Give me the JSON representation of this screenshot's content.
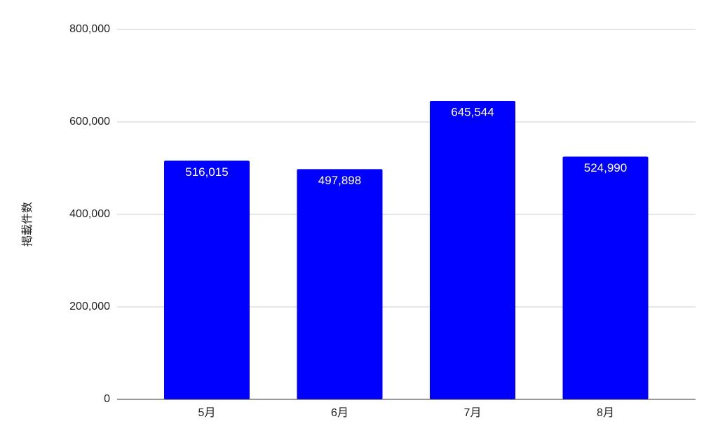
{
  "chart_data": {
    "type": "bar",
    "y_axis_label": "掲載件数",
    "categories": [
      "5月",
      "6月",
      "7月",
      "8月"
    ],
    "values": [
      516015,
      497898,
      645544,
      524990
    ],
    "value_labels": [
      "516,015",
      "497,898",
      "645,544",
      "524,990"
    ],
    "color": "#0000ff",
    "ylim": [
      0,
      800000
    ],
    "yticks": [
      0,
      {
        "value": 200000,
        "label": "200,000"
      },
      {
        "value": 400000,
        "label": "400,000"
      },
      {
        "value": 600000,
        "label": "600,000"
      },
      {
        "value": 800000,
        "label": "800,000"
      }
    ],
    "grid": true
  }
}
